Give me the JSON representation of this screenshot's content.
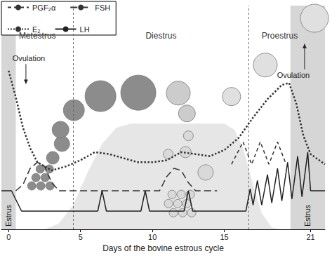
{
  "chart_data": {
    "type": "line",
    "xlabel": "Days of the bovine estrous cycle",
    "xlim": [
      -0.5,
      22
    ],
    "xticks": [
      0,
      5,
      10,
      15,
      21
    ],
    "ylim": [
      0,
      110
    ],
    "tick_labels": "x",
    "legend": "upper left",
    "phases": [
      {
        "label": "Metestrus",
        "start": -0.5,
        "end": 4.5
      },
      {
        "label": "Diestrus",
        "start": 4.5,
        "end": 16.7
      },
      {
        "label": "Proestrus",
        "start": 16.7,
        "end": 21
      }
    ],
    "estrus": [
      {
        "label": "Estrus",
        "start": -0.5,
        "end": 0.5
      },
      {
        "label": "Estrus",
        "start": 19.6,
        "end": 22
      }
    ],
    "annotations": [
      {
        "text": "Ovulation",
        "x": 1.4,
        "y": 84,
        "arrow": "down"
      },
      {
        "text": "Ovulation",
        "x": 19.8,
        "y": 76,
        "arrow": "up"
      }
    ],
    "series": [
      {
        "name": "PGF₂α",
        "type": "line",
        "line_style": "dashed",
        "color": "#333333",
        "x": [
          15.5,
          16.3,
          16.9,
          17.5,
          18.1,
          18.7,
          19.3
        ],
        "values": [
          32,
          43,
          32,
          43,
          32,
          43,
          32
        ]
      },
      {
        "name": "FSH",
        "type": "line",
        "line_style": "long-dashed",
        "color": "#333333",
        "x": [
          0.5,
          1,
          1.5,
          2,
          2.5,
          3,
          3.5,
          10.5,
          11,
          11.5,
          12,
          12.5,
          13,
          14.5
        ],
        "values": [
          19,
          22,
          30,
          33,
          31,
          23,
          19,
          19,
          26,
          30,
          29,
          23,
          19,
          19
        ]
      },
      {
        "name": "E₂",
        "type": "line",
        "line_style": "dotted",
        "color": "#333333",
        "x": [
          0,
          0.5,
          1,
          1.5,
          2,
          3,
          4,
          5,
          6,
          7,
          8,
          9,
          10,
          11,
          12,
          13,
          14,
          15,
          16,
          17,
          18,
          19,
          19.5,
          20,
          20.5,
          21,
          22
        ],
        "values": [
          78,
          65,
          50,
          40,
          33,
          29,
          31,
          34,
          38,
          37,
          35,
          33,
          33,
          34,
          38,
          37,
          36,
          39,
          45,
          55,
          64,
          71,
          72,
          62,
          46,
          37,
          32
        ]
      },
      {
        "name": "LH",
        "type": "line",
        "line_style": "solid",
        "color": "#222222",
        "x": [
          -0.5,
          0.2,
          0.9,
          6.2,
          6.5,
          6.8,
          9.2,
          9.5,
          9.8,
          12.2,
          12.5,
          12.8,
          16.5,
          16.8,
          17.0,
          17.3,
          17.6,
          18.0,
          18.3,
          18.7,
          19.0,
          19.4,
          19.7,
          20.1,
          20.4,
          20.8,
          21.0,
          22
        ],
        "values": [
          19,
          19,
          9,
          9,
          19,
          9,
          9,
          19,
          9,
          9,
          19,
          9,
          9,
          20,
          12,
          24,
          12,
          27,
          13,
          30,
          14,
          33,
          15,
          36,
          16,
          38,
          19,
          19
        ]
      },
      {
        "type": "area",
        "color": "#e6e6e6",
        "x": [
          2.5,
          3.5,
          4.5,
          5.5,
          6.5,
          7.5,
          8.5,
          15,
          15.7,
          16.3,
          17,
          17.6,
          18.3,
          19
        ],
        "values": [
          0,
          3,
          12,
          28,
          42,
          50,
          52,
          52,
          49,
          40,
          22,
          8,
          1,
          0
        ]
      },
      {
        "type": "scatter",
        "color": "#8c8c8c",
        "x": [
          1.61,
          2.24,
          2.88,
          1.9,
          2.54,
          2.2,
          2.83,
          3.07,
          3.71,
          3.61,
          4.54,
          6.39,
          9.02
        ],
        "values": [
          21.4,
          21.4,
          21.4,
          25.5,
          25.5,
          29.7,
          29.7,
          35.2,
          42.1,
          49.0,
          58.6,
          65.5,
          67.2
        ],
        "sizes": [
          12,
          12,
          12,
          12,
          12,
          12,
          12,
          18,
          22,
          24,
          30,
          44,
          50
        ]
      },
      {
        "type": "scatter",
        "color": "#cccccc",
        "x": [
          11.8,
          12.4
        ],
        "values": [
          67,
          57
        ],
        "sizes": [
          34,
          24
        ]
      },
      {
        "type": "scatter",
        "color": "#d9d9d9",
        "x": [
          11.37,
          12.0,
          12.63,
          11.12,
          11.76,
          12.39,
          11.46,
          12.1,
          12.73,
          11.1,
          12.3,
          13.7,
          12.5
        ],
        "values": [
          17.2,
          17.2,
          17.2,
          12.7,
          12.7,
          12.7,
          8.2,
          8.2,
          8.2,
          37,
          38,
          28,
          46
        ],
        "sizes": [
          12,
          12,
          12,
          12,
          12,
          12,
          12,
          12,
          12,
          14,
          16,
          22,
          14
        ]
      },
      {
        "type": "scatter",
        "color": "#e0e0e0",
        "x": [
          15.5,
          17.85,
          21.27
        ],
        "values": [
          65.3,
          80.8,
          103.8
        ],
        "sizes": [
          26,
          34,
          40
        ]
      }
    ]
  }
}
